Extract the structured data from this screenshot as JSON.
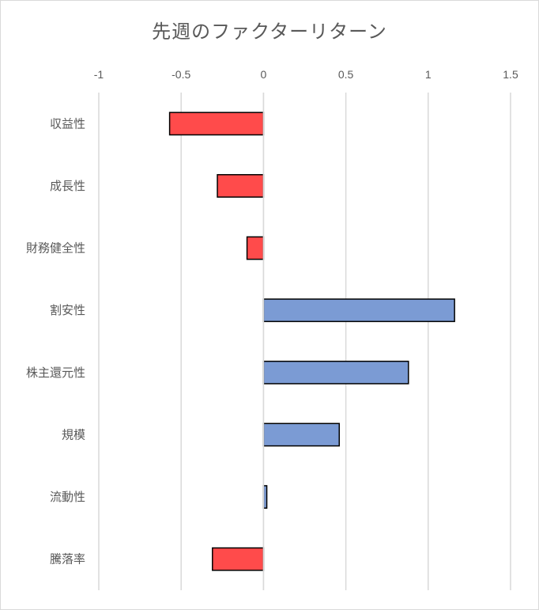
{
  "chart_data": {
    "type": "bar",
    "orientation": "horizontal",
    "title": "先週のファクターリターン",
    "xlabel": "",
    "ylabel": "",
    "xlim": [
      -1,
      1.5
    ],
    "x_ticks": [
      -1,
      -0.5,
      0,
      0.5,
      1,
      1.5
    ],
    "x_tick_labels": [
      "-1",
      "-0.5",
      "0",
      "0.5",
      "1",
      "1.5"
    ],
    "x_axis_position": "top",
    "grid": "vertical",
    "legend": "none",
    "categories": [
      "収益性",
      "成長性",
      "財務健全性",
      "割安性",
      "株主還元性",
      "規模",
      "流動性",
      "騰落率"
    ],
    "values": [
      -0.57,
      -0.28,
      -0.1,
      1.16,
      0.88,
      0.46,
      0.02,
      -0.31
    ],
    "colors": {
      "positive": "#7b9bd4",
      "negative": "#ff4b4b",
      "border": "#000000",
      "grid": "#d9d9d9",
      "text": "#595959"
    }
  }
}
